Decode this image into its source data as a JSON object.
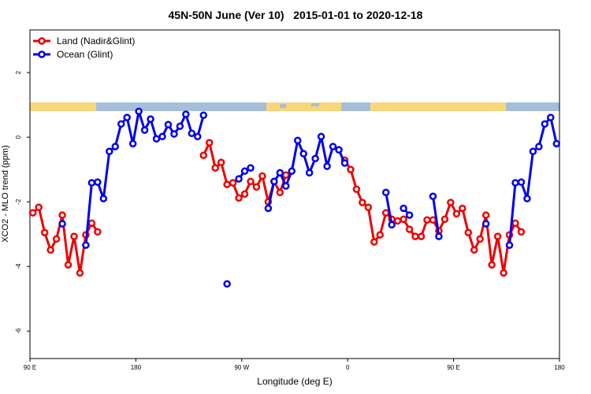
{
  "chart_data": {
    "type": "line",
    "title": "45N-50N June (Ver 10)   2015-01-01 to 2020-12-18",
    "x_label": "Longitude (deg E)",
    "y_label": "XCO2 - MLO trend (ppm)",
    "xlim": [
      90,
      540
    ],
    "xticks": [
      {
        "value": 90,
        "label": "90 E"
      },
      180,
      {
        "value": 270,
        "label": "90 W"
      },
      {
        "value": 360,
        "label": "0"
      },
      {
        "value": 450,
        "label": "90 E"
      },
      {
        "value": 540,
        "label": "180"
      }
    ],
    "ylim": [
      -6.85,
      3.32
    ],
    "yticks": [
      -6,
      -4,
      -2,
      0,
      2
    ],
    "legend": "top-left",
    "x": [
      92.5,
      97.5,
      102.5,
      107.5,
      112.5,
      117.5,
      122.5,
      127.5,
      132.5,
      137.5,
      142.5,
      147.5,
      152.5,
      157.5,
      162.5,
      167.5,
      172.5,
      177.5,
      182.5,
      187.5,
      192.5,
      197.5,
      202.5,
      207.5,
      212.5,
      217.5,
      222.5,
      227.5,
      232.5,
      237.5,
      242.5,
      247.5,
      252.5,
      257.5,
      262.5,
      267.5,
      272.5,
      277.5,
      282.5,
      287.5,
      292.5,
      297.5,
      302.5,
      307.5,
      312.5,
      317.5,
      322.5,
      327.5,
      332.5,
      337.5,
      342.5,
      347.5,
      352.5,
      357.5,
      362.5,
      367.5,
      372.5,
      377.5,
      382.5,
      387.5,
      392.5,
      397.5,
      402.5,
      407.5,
      412.5,
      417.5,
      422.5,
      427.5,
      432.5,
      437.5,
      442.5,
      447.5,
      452.5,
      457.5,
      462.5,
      467.5,
      472.5,
      477.5,
      482.5,
      487.5,
      492.5,
      497.5,
      502.5,
      507.5,
      512.5,
      517.5,
      522.5,
      527.5,
      532.5,
      537.5
    ],
    "series": [
      {
        "name": "Land (Nadir&Glint)",
        "color": "#ee0000",
        "values": [
          -2.34,
          -2.17,
          -2.95,
          -3.49,
          -3.15,
          -2.41,
          -3.95,
          -3.07,
          -4.2,
          -3.02,
          -2.66,
          -2.93,
          null,
          null,
          null,
          null,
          null,
          null,
          null,
          null,
          null,
          null,
          null,
          null,
          null,
          null,
          null,
          null,
          null,
          -0.56,
          -0.17,
          -0.95,
          -0.78,
          -1.46,
          -1.41,
          -1.88,
          -1.76,
          -1.37,
          -1.54,
          -1.2,
          -2.0,
          -1.37,
          -1.71,
          -1.17,
          null,
          null,
          null,
          null,
          null,
          null,
          null,
          null,
          null,
          -0.71,
          -1.0,
          -1.61,
          -2.02,
          -2.17,
          -3.24,
          -3.02,
          -2.34,
          -2.54,
          -2.59,
          -2.54,
          -2.85,
          -3.07,
          -3.07,
          -2.56,
          -2.56,
          -2.9,
          -2.54,
          -2.02,
          -2.37,
          -2.2,
          -2.95,
          -3.49,
          -3.15,
          -2.41,
          -3.95,
          -3.07,
          -4.2,
          -3.02,
          -2.66,
          -2.93,
          null,
          null,
          null,
          null,
          null,
          null
        ]
      },
      {
        "name": "Ocean (Glint)",
        "color": "#0000ee",
        "values": [
          null,
          null,
          null,
          null,
          null,
          -2.68,
          null,
          null,
          null,
          -3.34,
          -1.41,
          -1.39,
          -1.9,
          -0.44,
          -0.29,
          0.41,
          0.61,
          -0.2,
          0.8,
          0.22,
          0.56,
          -0.05,
          0.02,
          0.39,
          0.1,
          0.34,
          0.71,
          0.12,
          0.02,
          0.68,
          null,
          null,
          null,
          -4.54,
          null,
          -1.29,
          -1.05,
          -0.95,
          null,
          null,
          -2.2,
          -1.37,
          -1.1,
          -1.51,
          -1.05,
          -0.1,
          -0.51,
          -1.1,
          -0.66,
          0.02,
          -0.9,
          -0.29,
          -0.39,
          -0.8,
          null,
          null,
          null,
          null,
          null,
          null,
          -1.71,
          -2.71,
          null,
          -2.2,
          -2.41,
          null,
          null,
          null,
          -1.83,
          -3.07,
          null,
          null,
          null,
          null,
          null,
          null,
          null,
          -2.68,
          null,
          null,
          null,
          -3.34,
          -1.41,
          -1.39,
          -1.9,
          -0.44,
          -0.29,
          0.41,
          0.61,
          -0.2
        ]
      }
    ]
  }
}
